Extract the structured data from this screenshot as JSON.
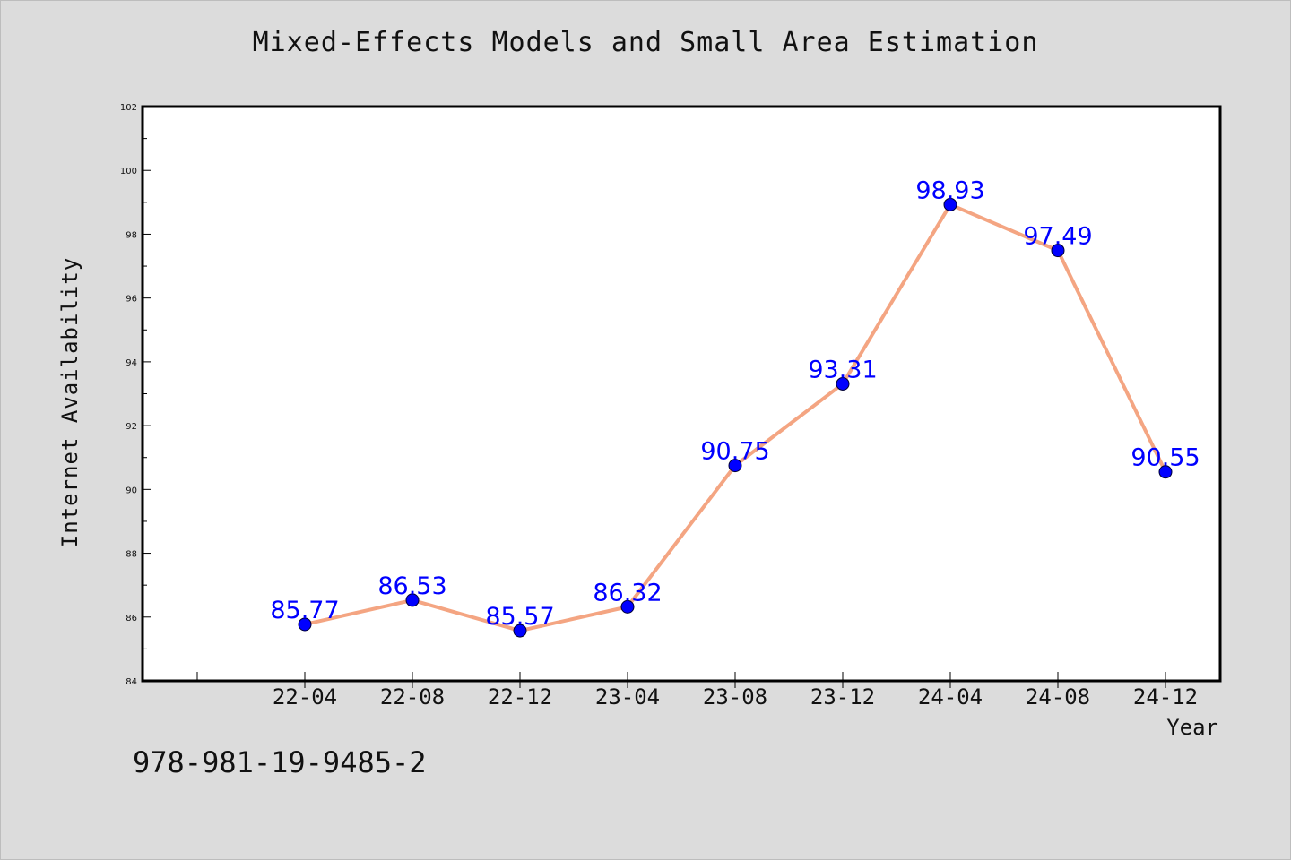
{
  "chart_data": {
    "type": "line",
    "title": "Mixed-Effects Models and Small Area Estimation",
    "xlabel": "Year",
    "ylabel": "Internet Availability",
    "categories": [
      "22-04",
      "22-08",
      "22-12",
      "23-04",
      "23-08",
      "23-12",
      "24-04",
      "24-08",
      "24-12"
    ],
    "series": [
      {
        "values": [
          85.77,
          86.53,
          85.57,
          86.32,
          90.75,
          93.31,
          98.93,
          97.49,
          90.55
        ],
        "data_labels": [
          "85.77",
          "86.53",
          "85.57",
          "86.32",
          "90.75",
          "93.31",
          "98.93",
          "97.49",
          "90.55"
        ]
      }
    ],
    "ylim": [
      84,
      102
    ],
    "yticks": [
      "84",
      "86",
      "88",
      "90",
      "92",
      "94",
      "96",
      "98",
      "100",
      "102"
    ],
    "grid": false,
    "colors": {
      "line": "#f4a582",
      "marker": "#0000ff",
      "data_label": "#0000ff",
      "background": "#dcdcdc",
      "plot_background": "#ffffff"
    }
  },
  "footer": {
    "isbn": "978-981-19-9485-2"
  }
}
